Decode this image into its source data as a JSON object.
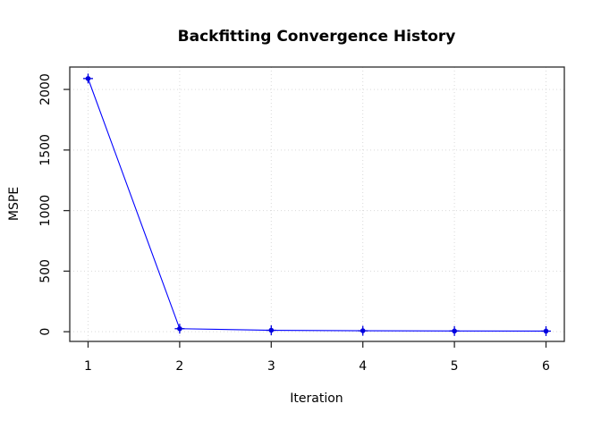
{
  "chart_data": {
    "type": "line",
    "title": "Backfitting Convergence History",
    "xlabel": "Iteration",
    "ylabel": "MSPE",
    "x": [
      1,
      2,
      3,
      4,
      5,
      6
    ],
    "y": [
      2090,
      25,
      12,
      8,
      6,
      5
    ],
    "series": [
      {
        "name": "MSPE",
        "values": [
          2090,
          25,
          12,
          8,
          6,
          5
        ]
      }
    ],
    "x_ticks": [
      1,
      2,
      3,
      4,
      5,
      6
    ],
    "y_ticks": [
      0,
      500,
      1000,
      1500,
      2000
    ],
    "xlim": [
      0.8,
      6.2
    ],
    "ylim": [
      -80,
      2185
    ],
    "grid": "dotted both axes at every tick",
    "legend": "none",
    "marker": "blue filled circle with cross spikes (R pch=8 style)",
    "colors": {
      "line": "#0000ff",
      "marker": "#0000e0",
      "grid": "#d9d9d9",
      "box": "#2b2b2b",
      "tick": "#2b2b2b",
      "background": "#ffffff",
      "text": "#000000"
    }
  }
}
